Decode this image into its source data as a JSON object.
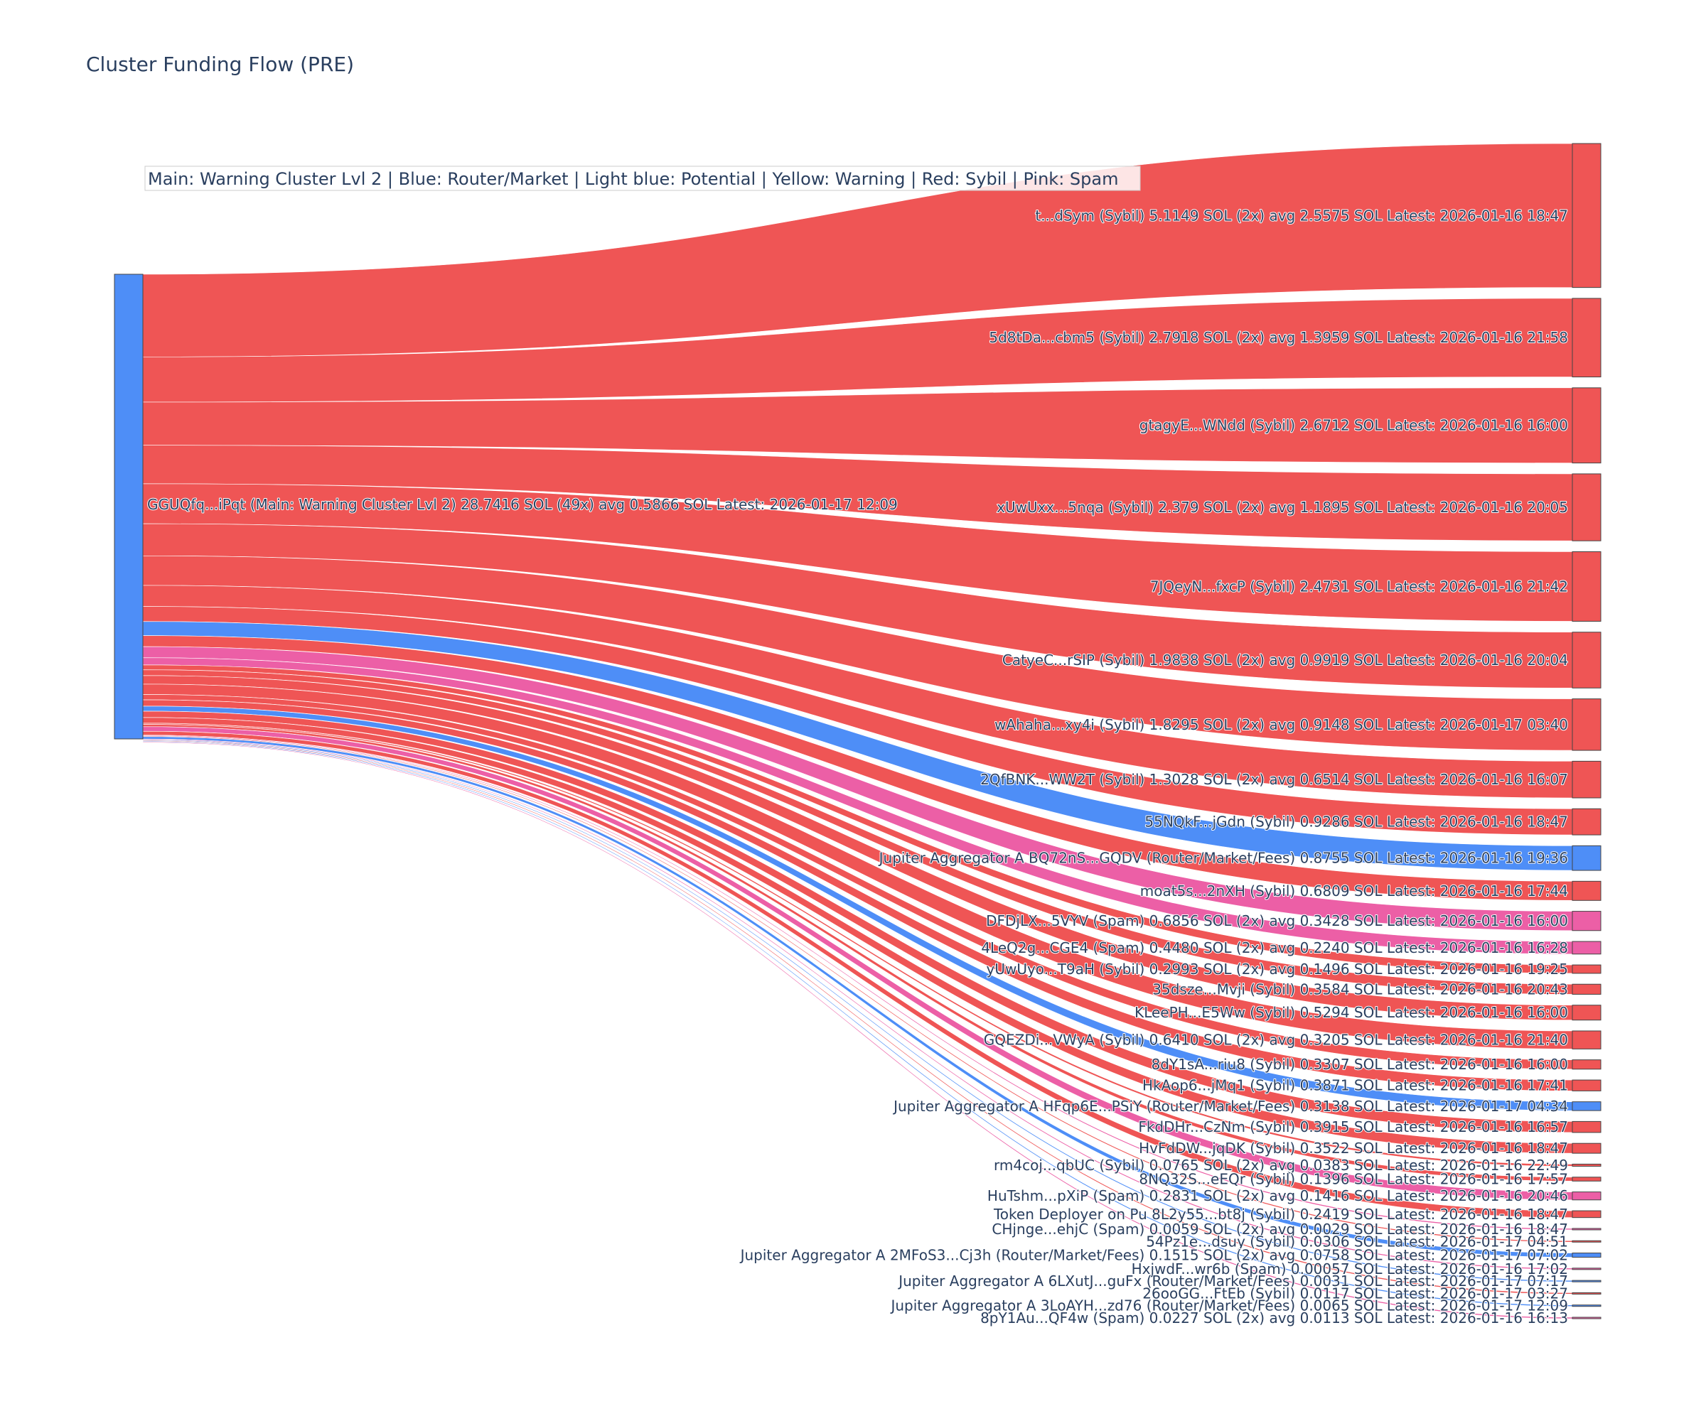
{
  "chart_data": {
    "type": "sankey",
    "title": "Cluster Funding Flow (PRE)",
    "legend": "Main: Warning Cluster Lvl 2  |  Blue: Router/Market | Light blue: Potential | Yellow: Warning | Red: Sybil | Pink: Spam",
    "colors": {
      "source": "#4e8ef7",
      "Sybil": "#ef5555",
      "Spam": "#ec5fa6",
      "Router": "#4e8ef7"
    },
    "source": {
      "label": "GGUQfq...iPqt (Main: Warning Cluster Lvl 2) 28.7416 SOL (49x) avg 0.5866 SOL Latest: 2026-01-17 12:09",
      "value": 28.7416
    },
    "targets": [
      {
        "label": "t...dSym (Sybil) 5.1149 SOL (2x) avg 2.5575 SOL Latest: 2026-01-16 18:47",
        "value": 5.1149,
        "category": "Sybil"
      },
      {
        "label": "5d8tDa...cbm5 (Sybil) 2.7918 SOL (2x) avg 1.3959 SOL Latest: 2026-01-16 21:58",
        "value": 2.7918,
        "category": "Sybil"
      },
      {
        "label": "gtagyE...WNdd (Sybil) 2.6712 SOL Latest: 2026-01-16 16:00",
        "value": 2.6712,
        "category": "Sybil"
      },
      {
        "label": "xUwUxx...5nqa (Sybil) 2.379 SOL (2x) avg 1.1895 SOL Latest: 2026-01-16 20:05",
        "value": 2.379,
        "category": "Sybil"
      },
      {
        "label": "7JQeyN...fxcP (Sybil) 2.4731 SOL Latest: 2026-01-16 21:42",
        "value": 2.4731,
        "category": "Sybil"
      },
      {
        "label": "CatyeC...rSIP (Sybil) 1.9838 SOL (2x) avg 0.9919 SOL Latest: 2026-01-16 20:04",
        "value": 1.9838,
        "category": "Sybil"
      },
      {
        "label": "wAhaha...xy4i (Sybil) 1.8295 SOL (2x) avg 0.9148 SOL Latest: 2026-01-17 03:40",
        "value": 1.8295,
        "category": "Sybil"
      },
      {
        "label": "2QfBNK...WW2T (Sybil) 1.3028 SOL (2x) avg 0.6514 SOL Latest: 2026-01-16 16:07",
        "value": 1.3028,
        "category": "Sybil"
      },
      {
        "label": "55NQkF...jGdn (Sybil) 0.9286 SOL Latest: 2026-01-16 18:47",
        "value": 0.9286,
        "category": "Sybil"
      },
      {
        "label": "Jupiter Aggregator A BQ72nS...GQDV (Router/Market/Fees) 0.8755 SOL Latest: 2026-01-16 19:36",
        "value": 0.8755,
        "category": "Router"
      },
      {
        "label": "moat5s...2nXH (Sybil) 0.6809 SOL Latest: 2026-01-16 17:44",
        "value": 0.6809,
        "category": "Sybil"
      },
      {
        "label": "DFDjLX...5VYV (Spam) 0.6856 SOL (2x) avg 0.3428 SOL Latest: 2026-01-16 16:00",
        "value": 0.6856,
        "category": "Spam"
      },
      {
        "label": "4LeQ2g...CGE4 (Spam) 0.4480 SOL (2x) avg 0.2240 SOL Latest: 2026-01-16 16:28",
        "value": 0.448,
        "category": "Spam"
      },
      {
        "label": "yUwUyo...T9aH (Sybil) 0.2993 SOL (2x) avg 0.1496 SOL Latest: 2026-01-16 19:25",
        "value": 0.2993,
        "category": "Sybil"
      },
      {
        "label": "35dsze...Mvji (Sybil) 0.3584 SOL Latest: 2026-01-16 20:43",
        "value": 0.3584,
        "category": "Sybil"
      },
      {
        "label": "KLeePH...E5Ww (Sybil) 0.5294 SOL Latest: 2026-01-16 16:00",
        "value": 0.5294,
        "category": "Sybil"
      },
      {
        "label": "GQEZDi...VWyA (Sybil) 0.6410 SOL (2x) avg 0.3205 SOL Latest: 2026-01-16 21:40",
        "value": 0.641,
        "category": "Sybil"
      },
      {
        "label": "8dY1sA...riu8 (Sybil) 0.3307 SOL Latest: 2026-01-16 16:00",
        "value": 0.3307,
        "category": "Sybil"
      },
      {
        "label": "HkAop6...jMq1 (Sybil) 0.3871 SOL Latest: 2026-01-16 17:41",
        "value": 0.3871,
        "category": "Sybil"
      },
      {
        "label": "Jupiter Aggregator A HFqp6E...PSiY (Router/Market/Fees) 0.3138 SOL Latest: 2026-01-17 04:34",
        "value": 0.3138,
        "category": "Router"
      },
      {
        "label": "FkdDHr...CzNm (Sybil) 0.3915 SOL Latest: 2026-01-16 16:57",
        "value": 0.3915,
        "category": "Sybil"
      },
      {
        "label": "HvFdDW...jqDK (Sybil) 0.3522 SOL Latest: 2026-01-16 18:47",
        "value": 0.3522,
        "category": "Sybil"
      },
      {
        "label": "rm4coj...qbUC (Sybil) 0.0765 SOL (2x) avg 0.0383 SOL Latest: 2026-01-16 22:49",
        "value": 0.0765,
        "category": "Sybil"
      },
      {
        "label": "8NQ32S...eEQr (Sybil) 0.1396 SOL Latest: 2026-01-16 17:57",
        "value": 0.1396,
        "category": "Sybil"
      },
      {
        "label": "HuTshm...pXiP (Spam) 0.2831 SOL (2x) avg 0.1416 SOL Latest: 2026-01-16 20:46",
        "value": 0.2831,
        "category": "Spam"
      },
      {
        "label": "Token Deployer on Pu 8L2y55...bt8j (Sybil) 0.2419 SOL Latest: 2026-01-16 18:47",
        "value": 0.2419,
        "category": "Sybil"
      },
      {
        "label": "CHjnge...ehjC (Spam) 0.0059 SOL (2x) avg 0.0029 SOL Latest: 2026-01-16 18:47",
        "value": 0.0059,
        "category": "Spam"
      },
      {
        "label": "54Pz1e...dsuy (Sybil) 0.0306 SOL Latest: 2026-01-17 04:51",
        "value": 0.0306,
        "category": "Sybil"
      },
      {
        "label": "Jupiter Aggregator A 2MFoS3...Cj3h (Router/Market/Fees) 0.1515 SOL (2x) avg 0.0758 SOL Latest: 2026-01-17 07:02",
        "value": 0.1515,
        "category": "Router"
      },
      {
        "label": "HxjwdF...wr6b (Spam) 0.00057 SOL Latest: 2026-01-16 17:02",
        "value": 0.00057,
        "category": "Spam"
      },
      {
        "label": "Jupiter Aggregator A 6LXutJ...guFx (Router/Market/Fees) 0.0031 SOL Latest: 2026-01-17 07:17",
        "value": 0.0031,
        "category": "Router"
      },
      {
        "label": "26ooGG...FtEb (Sybil) 0.0117 SOL Latest: 2026-01-17 03:27",
        "value": 0.0117,
        "category": "Sybil"
      },
      {
        "label": "Jupiter Aggregator A 3LoAYH...zd76 (Router/Market/Fees) 0.0065 SOL Latest: 2026-01-17 12:09",
        "value": 0.0065,
        "category": "Router"
      },
      {
        "label": "8pY1Au...QF4w (Spam) 0.0227 SOL (2x) avg 0.0113 SOL Latest: 2026-01-16 16:13",
        "value": 0.0227,
        "category": "Spam"
      }
    ]
  }
}
